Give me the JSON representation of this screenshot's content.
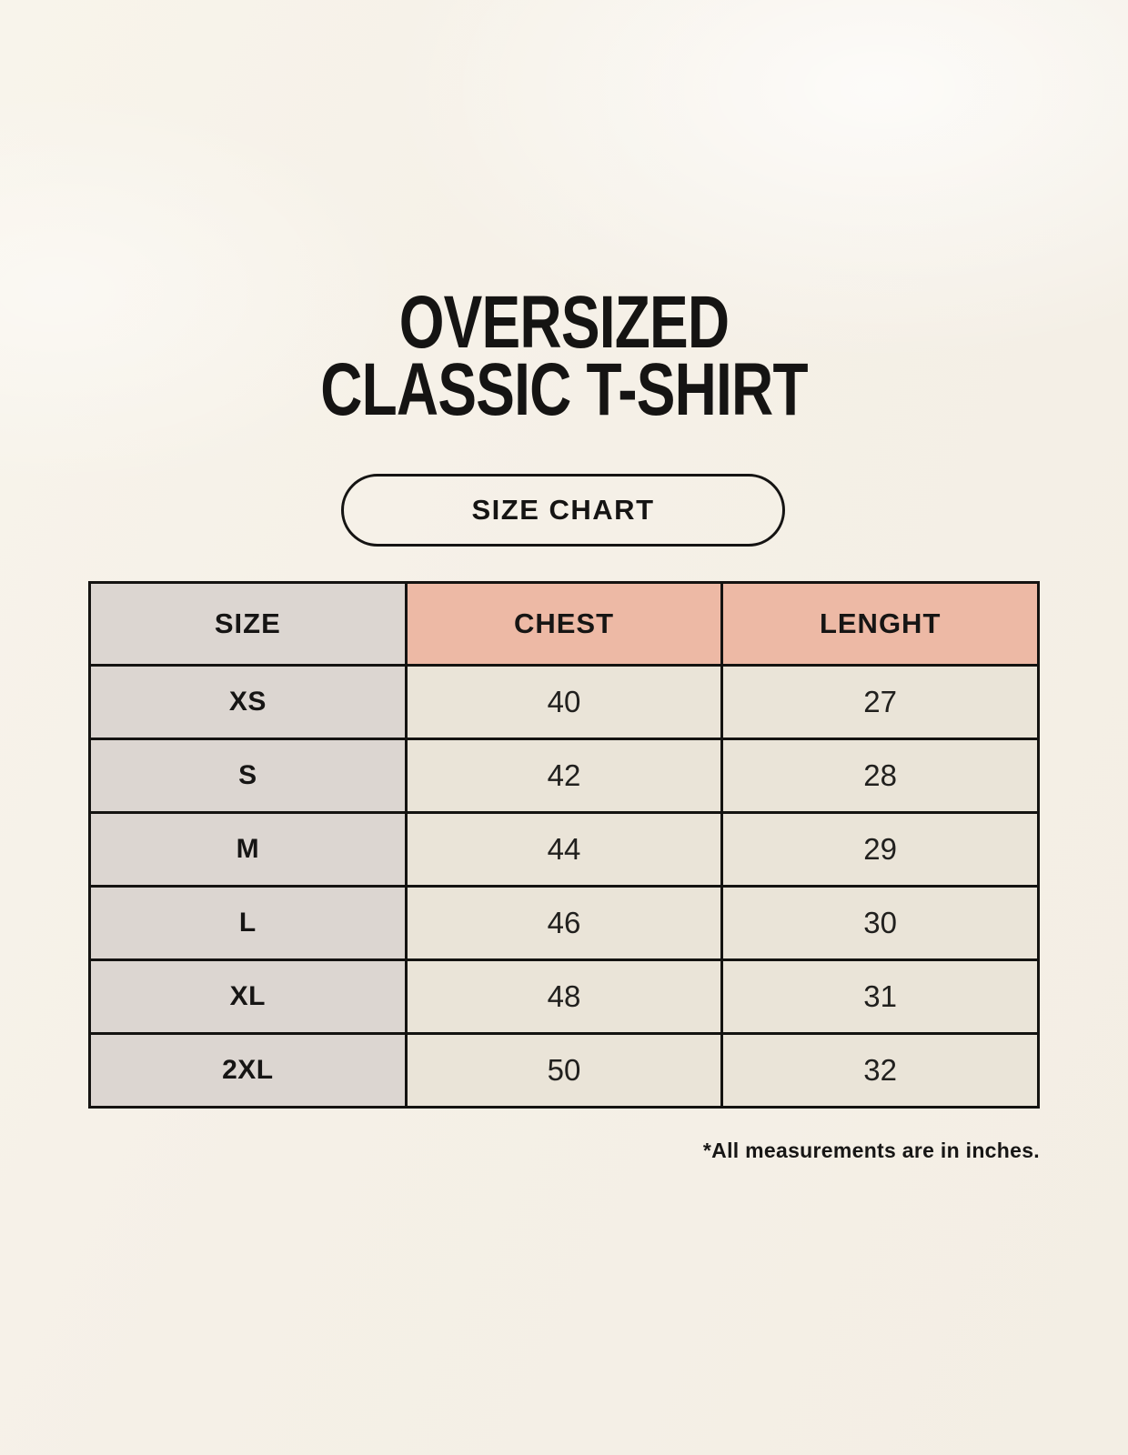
{
  "page": {
    "title_line1": "OVERSIZED",
    "title_line2": "CLASSIC T-SHIRT",
    "badge_label": "SIZE CHART",
    "footnote": "*All measurements are in inches."
  },
  "table": {
    "headers": [
      "SIZE",
      "CHEST",
      "LENGHT"
    ],
    "rows": [
      {
        "size": "XS",
        "chest": "40",
        "length": "27"
      },
      {
        "size": "S",
        "chest": "42",
        "length": "28"
      },
      {
        "size": "M",
        "chest": "44",
        "length": "29"
      },
      {
        "size": "L",
        "chest": "46",
        "length": "30"
      },
      {
        "size": "XL",
        "chest": "48",
        "length": "31"
      },
      {
        "size": "2XL",
        "chest": "50",
        "length": "32"
      }
    ]
  },
  "chart_data": {
    "type": "table",
    "title": "Oversized Classic T-Shirt Size Chart",
    "columns": [
      "SIZE",
      "CHEST",
      "LENGHT"
    ],
    "rows": [
      [
        "XS",
        40,
        27
      ],
      [
        "S",
        42,
        28
      ],
      [
        "M",
        44,
        29
      ],
      [
        "L",
        46,
        30
      ],
      [
        "XL",
        48,
        31
      ],
      [
        "2XL",
        50,
        32
      ]
    ],
    "units": "inches"
  },
  "colors": {
    "background": "#f5f0e7",
    "header_accent": "#edb9a5",
    "size_column": "#dcd6d1",
    "data_cell": "#eae4d8",
    "border": "#141311",
    "text": "#151413"
  }
}
